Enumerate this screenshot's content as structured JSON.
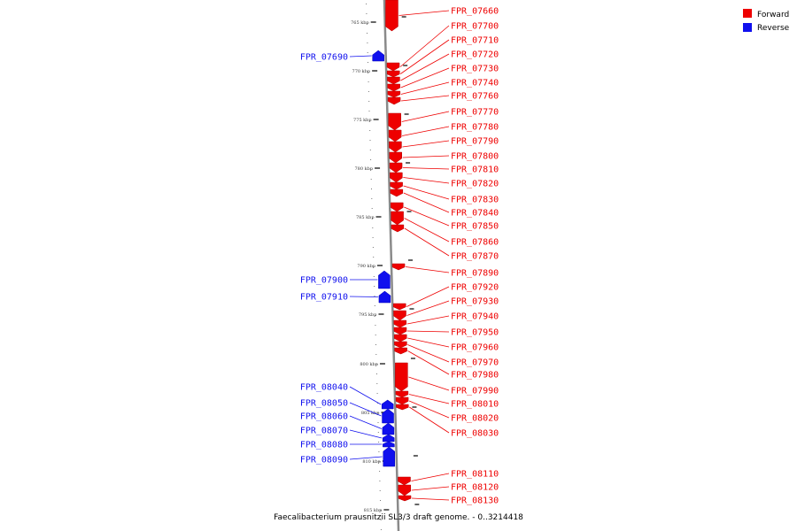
{
  "caption": "Faecalibacterium prausnitzii SL3/3 draft genome. - 0..3214418",
  "legend": [
    {
      "label": "Forward",
      "color": "#ee0000"
    },
    {
      "label": "Reverse",
      "color": "#1010ee"
    }
  ],
  "colors": {
    "forward": "#ee0000",
    "reverse": "#1010ee",
    "backbone": "#8a8a8a"
  },
  "ticks": [
    "765 kbp",
    "770 kbp",
    "775 kbp",
    "780 kbp",
    "785 kbp",
    "790 kbp",
    "795 kbp",
    "800 kbp",
    "805 kbp",
    "810 kbp",
    "815 kbp"
  ],
  "genes": [
    {
      "id": "FPR_07660",
      "strand": "forward"
    },
    {
      "id": "FPR_07690",
      "strand": "reverse"
    },
    {
      "id": "FPR_07700",
      "strand": "forward"
    },
    {
      "id": "FPR_07710",
      "strand": "forward"
    },
    {
      "id": "FPR_07720",
      "strand": "forward"
    },
    {
      "id": "FPR_07730",
      "strand": "forward"
    },
    {
      "id": "FPR_07740",
      "strand": "forward"
    },
    {
      "id": "FPR_07760",
      "strand": "forward"
    },
    {
      "id": "FPR_07770",
      "strand": "forward"
    },
    {
      "id": "FPR_07780",
      "strand": "forward"
    },
    {
      "id": "FPR_07790",
      "strand": "forward"
    },
    {
      "id": "FPR_07800",
      "strand": "forward"
    },
    {
      "id": "FPR_07810",
      "strand": "forward"
    },
    {
      "id": "FPR_07820",
      "strand": "forward"
    },
    {
      "id": "FPR_07830",
      "strand": "forward"
    },
    {
      "id": "FPR_07840",
      "strand": "forward"
    },
    {
      "id": "FPR_07850",
      "strand": "forward"
    },
    {
      "id": "FPR_07860",
      "strand": "forward"
    },
    {
      "id": "FPR_07870",
      "strand": "forward"
    },
    {
      "id": "FPR_07890",
      "strand": "forward"
    },
    {
      "id": "FPR_07900",
      "strand": "reverse"
    },
    {
      "id": "FPR_07910",
      "strand": "reverse"
    },
    {
      "id": "FPR_07920",
      "strand": "forward"
    },
    {
      "id": "FPR_07930",
      "strand": "forward"
    },
    {
      "id": "FPR_07940",
      "strand": "forward"
    },
    {
      "id": "FPR_07950",
      "strand": "forward"
    },
    {
      "id": "FPR_07960",
      "strand": "forward"
    },
    {
      "id": "FPR_07970",
      "strand": "forward"
    },
    {
      "id": "FPR_07980",
      "strand": "forward"
    },
    {
      "id": "FPR_07990",
      "strand": "forward"
    },
    {
      "id": "FPR_08010",
      "strand": "forward"
    },
    {
      "id": "FPR_08020",
      "strand": "forward"
    },
    {
      "id": "FPR_08030",
      "strand": "forward"
    },
    {
      "id": "FPR_08040",
      "strand": "reverse"
    },
    {
      "id": "FPR_08050",
      "strand": "reverse"
    },
    {
      "id": "FPR_08060",
      "strand": "reverse"
    },
    {
      "id": "FPR_08070",
      "strand": "reverse"
    },
    {
      "id": "FPR_08080",
      "strand": "reverse"
    },
    {
      "id": "FPR_08090",
      "strand": "reverse"
    },
    {
      "id": "FPR_08110",
      "strand": "forward"
    },
    {
      "id": "FPR_08120",
      "strand": "forward"
    },
    {
      "id": "FPR_08130",
      "strand": "forward"
    }
  ]
}
